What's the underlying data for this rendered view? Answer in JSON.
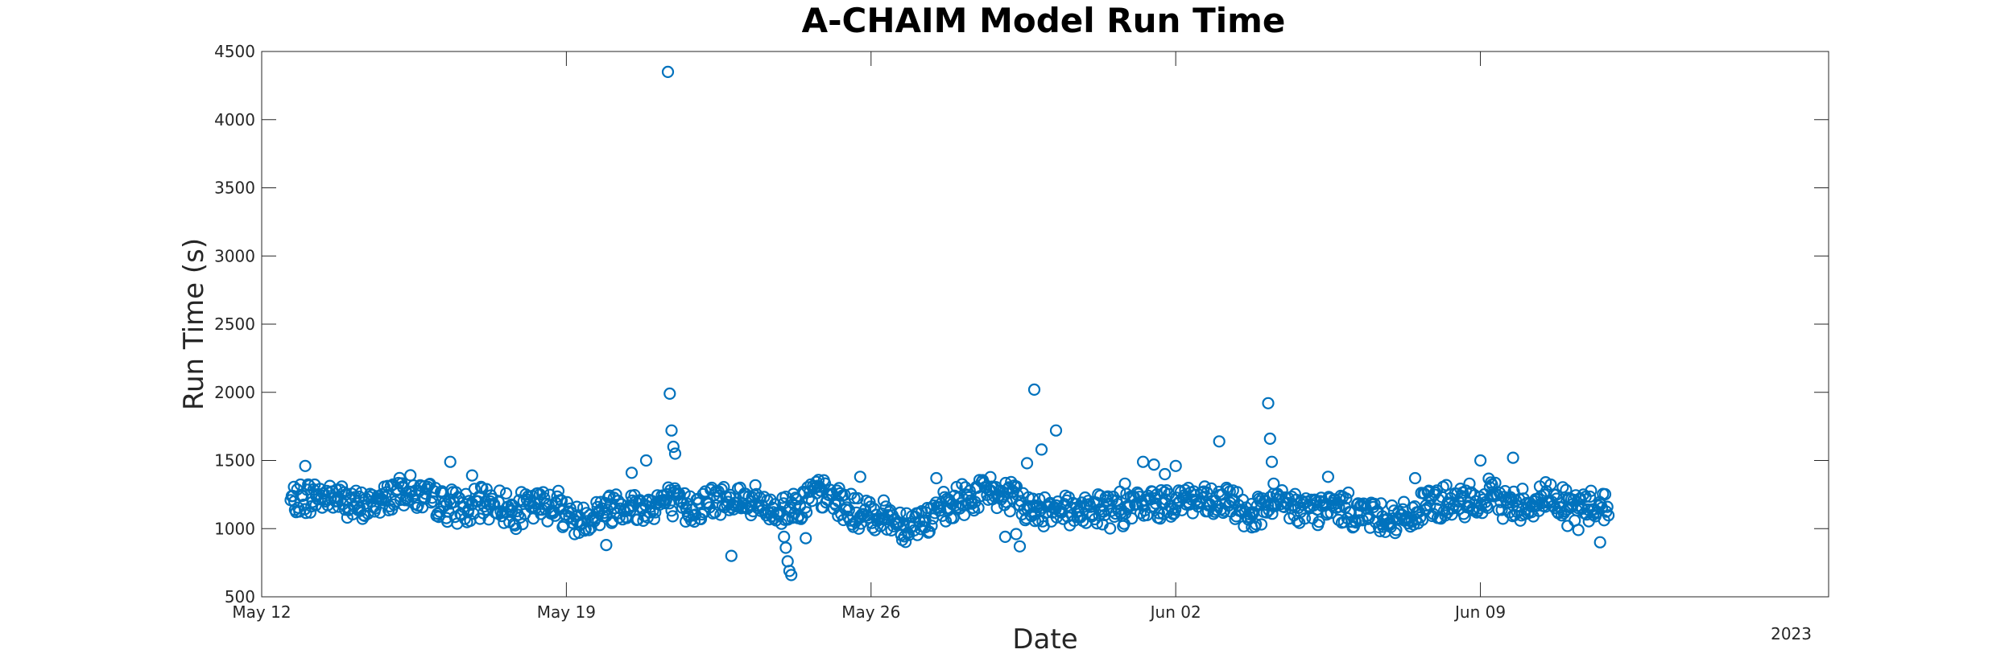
{
  "colors": {
    "marker": "#0072BD",
    "axis": "#262626",
    "background": "#ffffff"
  },
  "chart_data": {
    "type": "scatter",
    "title": "A-CHAIM Model Run Time",
    "xlabel": "Date",
    "ylabel": "Run Time (s)",
    "year_label": "2023",
    "xlim": [
      "2023-05-12",
      "2023-06-17"
    ],
    "ylim": [
      500,
      4500
    ],
    "x_ticks": [
      "2023-05-12",
      "2023-05-19",
      "2023-05-26",
      "2023-06-02",
      "2023-06-09"
    ],
    "x_tick_labels": [
      "May 12",
      "May 19",
      "May 26",
      "Jun 02",
      "Jun 09"
    ],
    "y_ticks": [
      500,
      1000,
      1500,
      2000,
      2500,
      3000,
      3500,
      4000,
      4500
    ],
    "grid": false,
    "marker": "open-circle",
    "series": [
      {
        "x": [
          "2023-05-12 18:00",
          "2023-05-13 06:00",
          "2023-05-13 18:00",
          "2023-05-14 06:00",
          "2023-05-14 18:00",
          "2023-05-15 06:00",
          "2023-05-15 18:00",
          "2023-05-16 06:00",
          "2023-05-16 18:00",
          "2023-05-17 06:00",
          "2023-05-17 18:00",
          "2023-05-18 06:00",
          "2023-05-18 18:00",
          "2023-05-19 06:00",
          "2023-05-19 18:00",
          "2023-05-20 06:00",
          "2023-05-20 18:00",
          "2023-05-21 06:00",
          "2023-05-21 18:00",
          "2023-05-22 06:00",
          "2023-05-22 18:00",
          "2023-05-23 06:00",
          "2023-05-23 18:00",
          "2023-05-24 06:00",
          "2023-05-24 18:00",
          "2023-05-25 06:00",
          "2023-05-25 18:00",
          "2023-05-26 06:00",
          "2023-05-26 18:00",
          "2023-05-27 06:00",
          "2023-05-27 18:00",
          "2023-05-28 06:00",
          "2023-05-28 18:00",
          "2023-05-29 06:00",
          "2023-05-29 18:00",
          "2023-05-30 06:00",
          "2023-05-30 18:00",
          "2023-05-31 06:00",
          "2023-05-31 18:00",
          "2023-06-01 06:00",
          "2023-06-01 18:00",
          "2023-06-02 06:00",
          "2023-06-02 18:00",
          "2023-06-03 06:00",
          "2023-06-03 18:00",
          "2023-06-04 06:00",
          "2023-06-04 18:00",
          "2023-06-05 06:00",
          "2023-06-05 18:00",
          "2023-06-06 06:00",
          "2023-06-06 18:00",
          "2023-06-07 06:00",
          "2023-06-07 18:00",
          "2023-06-08 06:00",
          "2023-06-08 18:00",
          "2023-06-09 06:00",
          "2023-06-09 18:00",
          "2023-06-10 06:00",
          "2023-06-10 18:00",
          "2023-06-11 06:00",
          "2023-06-11 18:00",
          "2023-05-13 00:00",
          "2023-05-16 08:00",
          "2023-05-16 20:00",
          "2023-05-19 22:00",
          "2023-05-20 12:00",
          "2023-05-20 20:00",
          "2023-05-21 08:00",
          "2023-05-21 09:00",
          "2023-05-21 10:00",
          "2023-05-21 11:00",
          "2023-05-21 12:00",
          "2023-05-22 19:00",
          "2023-05-24 00:00",
          "2023-05-24 01:00",
          "2023-05-24 02:00",
          "2023-05-24 03:00",
          "2023-05-24 04:00",
          "2023-05-24 12:00",
          "2023-05-25 18:00",
          "2023-05-27 12:00",
          "2023-05-29 02:00",
          "2023-05-29 08:00",
          "2023-05-29 10:00",
          "2023-05-29 14:00",
          "2023-05-29 18:00",
          "2023-05-29 22:00",
          "2023-05-30 06:00",
          "2023-05-31 20:00",
          "2023-06-01 06:00",
          "2023-06-01 12:00",
          "2023-06-01 18:00",
          "2023-06-02 00:00",
          "2023-06-03 00:00",
          "2023-06-03 18:00",
          "2023-06-04 03:00",
          "2023-06-04 04:00",
          "2023-06-04 05:00",
          "2023-06-04 06:00",
          "2023-06-05 12:00",
          "2023-06-07 12:00",
          "2023-06-08 00:00",
          "2023-06-08 18:00",
          "2023-06-09 00:00",
          "2023-06-09 18:00",
          "2023-06-10 12:00",
          "2023-06-11 00:00",
          "2023-06-11 06:00",
          "2023-06-11 18:00"
        ],
        "y": [
          1200,
          1240,
          1230,
          1150,
          1210,
          1300,
          1220,
          1180,
          1140,
          1200,
          1130,
          1160,
          1190,
          1050,
          1130,
          1180,
          1150,
          1210,
          1150,
          1190,
          1230,
          1200,
          1120,
          1170,
          1260,
          1200,
          1090,
          1110,
          1030,
          1060,
          1150,
          1230,
          1280,
          1220,
          1120,
          1170,
          1130,
          1140,
          1140,
          1180,
          1190,
          1230,
          1170,
          1190,
          1120,
          1170,
          1160,
          1140,
          1160,
          1120,
          1090,
          1060,
          1170,
          1190,
          1160,
          1240,
          1170,
          1200,
          1220,
          1150,
          1180,
          1460,
          1490,
          1390,
          880,
          1410,
          1500,
          4350,
          1990,
          1720,
          1600,
          1550,
          800,
          940,
          860,
          760,
          690,
          660,
          930,
          1380,
          1370,
          940,
          960,
          870,
          1480,
          2020,
          1580,
          1720,
          1330,
          1490,
          1470,
          1400,
          1460,
          1640,
          1010,
          1920,
          1660,
          1490,
          1330,
          1380,
          1370,
          1280,
          1330,
          1500,
          1520,
          1340,
          1020,
          990,
          900
        ]
      }
    ]
  }
}
